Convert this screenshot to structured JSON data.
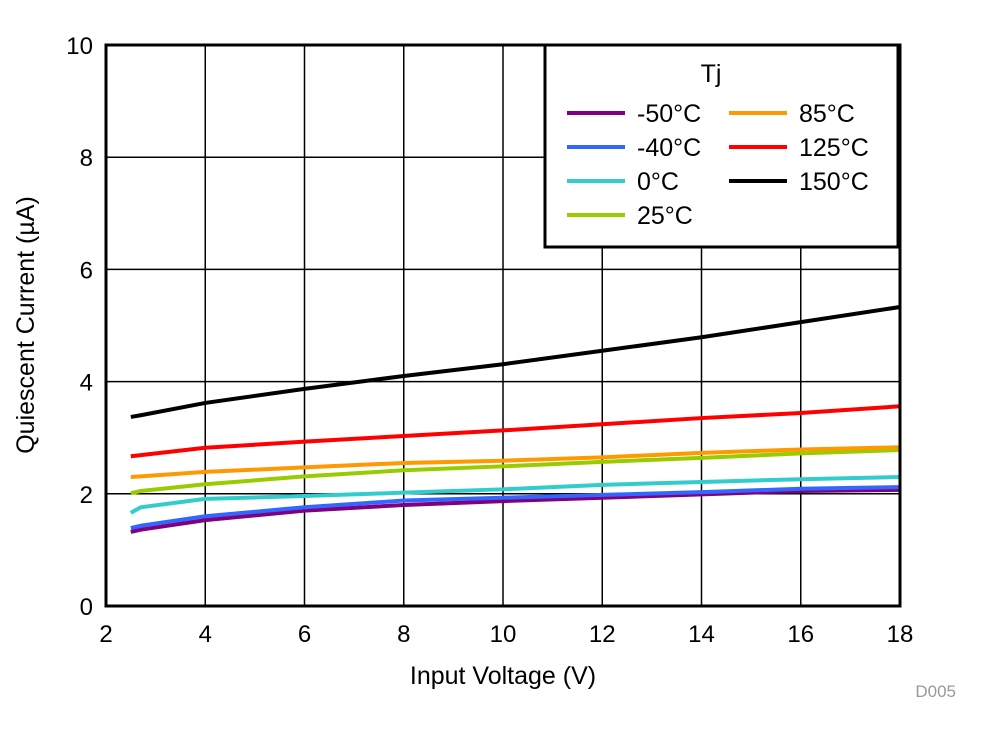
{
  "chart_data": {
    "type": "line",
    "title": "",
    "xlabel": "Input Voltage (V)",
    "ylabel": "Quiescent Current (µA)",
    "xlim": [
      2,
      18
    ],
    "ylim": [
      0,
      10
    ],
    "xticks": [
      "2",
      "4",
      "6",
      "8",
      "10",
      "12",
      "14",
      "16",
      "18"
    ],
    "yticks": [
      "0",
      "2",
      "4",
      "6",
      "8",
      "10"
    ],
    "grid": true,
    "legend": {
      "title": "Tj",
      "placement": "top-right"
    },
    "x": [
      2.5,
      2.7,
      4,
      6,
      8,
      10,
      12,
      14,
      16,
      18
    ],
    "series": [
      {
        "name": "-50°C",
        "color": "#800080",
        "values": [
          1.32,
          1.36,
          1.53,
          1.7,
          1.8,
          1.87,
          1.93,
          1.99,
          2.05,
          2.07
        ]
      },
      {
        "name": "-40°C",
        "color": "#3366ff",
        "values": [
          1.39,
          1.43,
          1.6,
          1.76,
          1.88,
          1.93,
          1.98,
          2.03,
          2.09,
          2.12
        ]
      },
      {
        "name": "0°C",
        "color": "#33cccc",
        "values": [
          1.66,
          1.76,
          1.91,
          1.96,
          2.02,
          2.08,
          2.16,
          2.21,
          2.26,
          2.3
        ]
      },
      {
        "name": "25°C",
        "color": "#99cc00",
        "values": [
          2.01,
          2.05,
          2.17,
          2.31,
          2.42,
          2.49,
          2.57,
          2.64,
          2.72,
          2.78
        ]
      },
      {
        "name": "85°C",
        "color": "#ff9900",
        "values": [
          2.3,
          2.31,
          2.39,
          2.47,
          2.55,
          2.59,
          2.65,
          2.73,
          2.79,
          2.83
        ]
      },
      {
        "name": "125°C",
        "color": "#ff0000",
        "values": [
          2.67,
          2.69,
          2.82,
          2.93,
          3.03,
          3.13,
          3.24,
          3.35,
          3.44,
          3.56
        ]
      },
      {
        "name": "150°C",
        "color": "#000000",
        "values": [
          3.37,
          3.4,
          3.62,
          3.87,
          4.1,
          4.31,
          4.55,
          4.79,
          5.06,
          5.33
        ]
      }
    ]
  },
  "watermark": "D005"
}
